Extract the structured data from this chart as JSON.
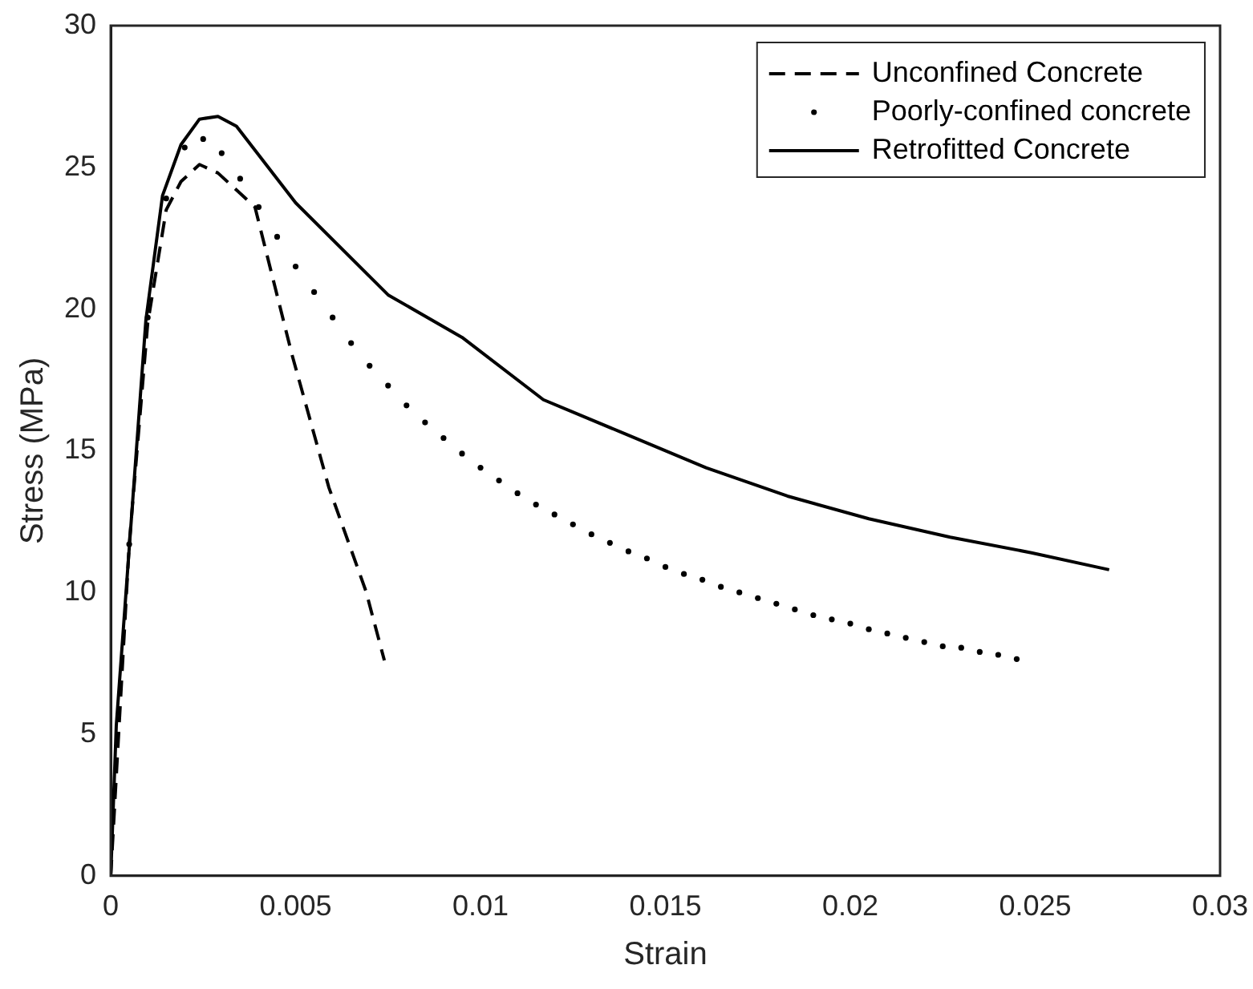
{
  "chart_data": {
    "type": "line",
    "xlabel": "Strain",
    "ylabel": "Stress (MPa)",
    "xlim": [
      0,
      0.03
    ],
    "ylim": [
      0,
      30
    ],
    "xticks": [
      0,
      0.005,
      0.01,
      0.015,
      0.02,
      0.025,
      0.03
    ],
    "yticks": [
      0,
      5,
      10,
      15,
      20,
      25,
      30
    ],
    "grid": false,
    "legend": "top right",
    "marker": "none",
    "series": [
      {
        "name": "Unconfined Concrete",
        "type": "line",
        "line_style": "dashed",
        "color": "#000000",
        "x": [
          0,
          0.0005,
          0.001,
          0.0015,
          0.0019,
          0.0024,
          0.0029,
          0.0034,
          0.0039,
          0.0049,
          0.0059,
          0.0069,
          0.0074
        ],
        "values": [
          0,
          11.7,
          19.5,
          23.5,
          24.5,
          25.1,
          24.8,
          24.2,
          23.6,
          18.4,
          13.7,
          10.05,
          7.6
        ]
      },
      {
        "name": "Poorly-confined concrete",
        "type": "scatter",
        "marker": "circle",
        "color": "#000000",
        "x": [
          0.0005,
          0.001,
          0.0015,
          0.002,
          0.0025,
          0.003,
          0.0035,
          0.004,
          0.0045,
          0.005,
          0.0055,
          0.006,
          0.0065,
          0.007,
          0.0075,
          0.008,
          0.0085,
          0.009,
          0.0095,
          0.01,
          0.0105,
          0.011,
          0.0115,
          0.012,
          0.0125,
          0.013,
          0.0135,
          0.014,
          0.0145,
          0.015,
          0.0155,
          0.016,
          0.0165,
          0.017,
          0.0175,
          0.018,
          0.0185,
          0.019,
          0.0195,
          0.02,
          0.0205,
          0.021,
          0.0215,
          0.022,
          0.0225,
          0.023,
          0.0235,
          0.024,
          0.0245
        ],
        "values": [
          11.7,
          19.7,
          23.9,
          25.7,
          26.0,
          25.5,
          24.6,
          23.6,
          22.55,
          21.5,
          20.6,
          19.7,
          18.8,
          18.0,
          17.3,
          16.6,
          16.0,
          15.45,
          14.9,
          14.4,
          13.95,
          13.5,
          13.1,
          12.75,
          12.4,
          12.05,
          11.75,
          11.45,
          11.2,
          10.9,
          10.65,
          10.45,
          10.2,
          10.0,
          9.8,
          9.6,
          9.4,
          9.2,
          9.05,
          8.9,
          8.7,
          8.55,
          8.4,
          8.25,
          8.1,
          8.05,
          7.9,
          7.8,
          7.65
        ]
      },
      {
        "name": "Retrofitted Concrete",
        "type": "line",
        "line_style": "solid",
        "color": "#000000",
        "x": [
          0,
          0.00015,
          0.00095,
          0.0014,
          0.0019,
          0.0024,
          0.0029,
          0.0034,
          0.005,
          0.0075,
          0.0095,
          0.0117,
          0.0139,
          0.0161,
          0.0183,
          0.0205,
          0.0227,
          0.0249,
          0.027
        ],
        "values": [
          0,
          5.3,
          19.6,
          24.0,
          25.8,
          26.7,
          26.8,
          26.45,
          23.75,
          20.5,
          19.0,
          16.8,
          15.6,
          14.4,
          13.4,
          12.6,
          11.95,
          11.4,
          10.8
        ]
      }
    ]
  }
}
